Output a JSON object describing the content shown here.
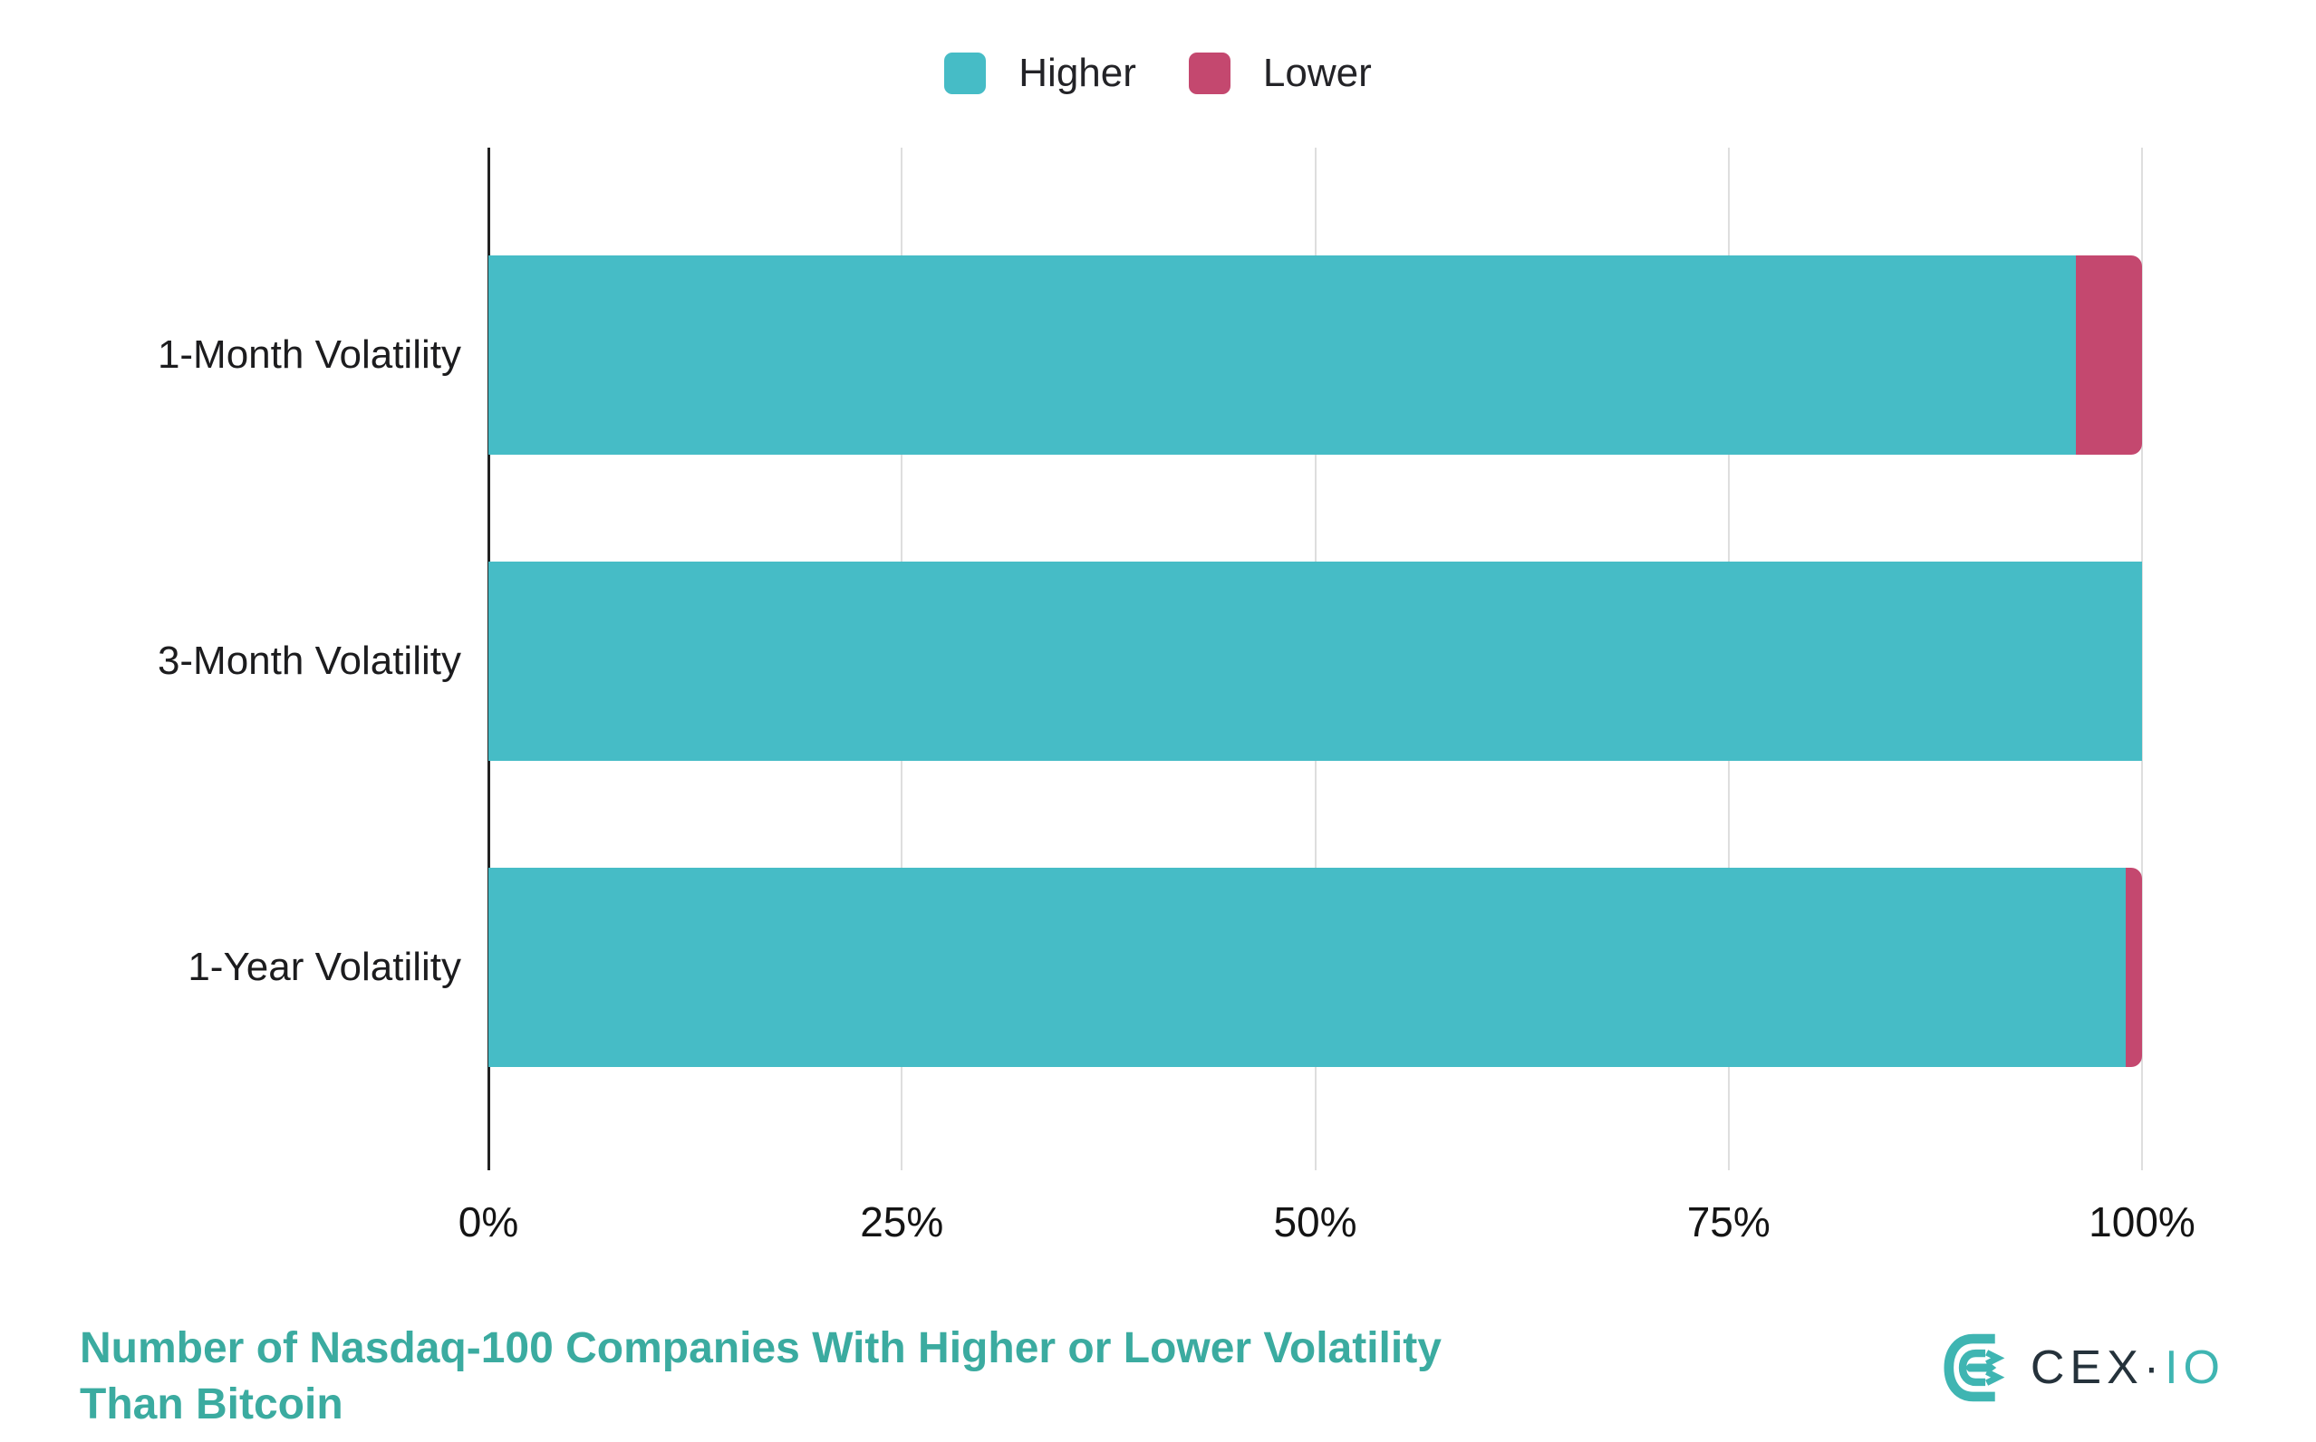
{
  "chart_data": {
    "type": "bar",
    "orientation": "horizontal",
    "stacked": true,
    "title": "Number of Nasdaq-100 Companies With Higher or Lower Volatility Than Bitcoin",
    "title_lines": [
      "Number of Nasdaq-100 Companies With Higher or Lower Volatility",
      "Than Bitcoin"
    ],
    "categories": [
      "1-Month Volatility",
      "3-Month Volatility",
      "1-Year Volatility"
    ],
    "series": [
      {
        "name": "Higher",
        "color": "#46BCC6",
        "values": [
          96,
          100,
          99
        ]
      },
      {
        "name": "Lower",
        "color": "#C4486F",
        "values": [
          4,
          0,
          1
        ]
      }
    ],
    "x_axis": {
      "min": 0,
      "max": 100,
      "tick_values": [
        0,
        25,
        50,
        75,
        100
      ],
      "tick_labels": [
        "0%",
        "25%",
        "50%",
        "75%",
        "100%"
      ]
    },
    "grid": "vertical",
    "legend_position": "top-center"
  },
  "colors": {
    "higher": "#46BCC6",
    "lower": "#C4486F",
    "title": "#3BABA0",
    "axis_line": "#222222",
    "gridline": "#DEDEDE",
    "label_text": "#1C1C1E",
    "background": "#FFFFFF",
    "logo_teal": "#3FB5B2",
    "logo_dark": "#25323B"
  },
  "logo": {
    "brand": "CEX·IO",
    "primary": "CEX",
    "separator": "·",
    "secondary": "IO"
  }
}
